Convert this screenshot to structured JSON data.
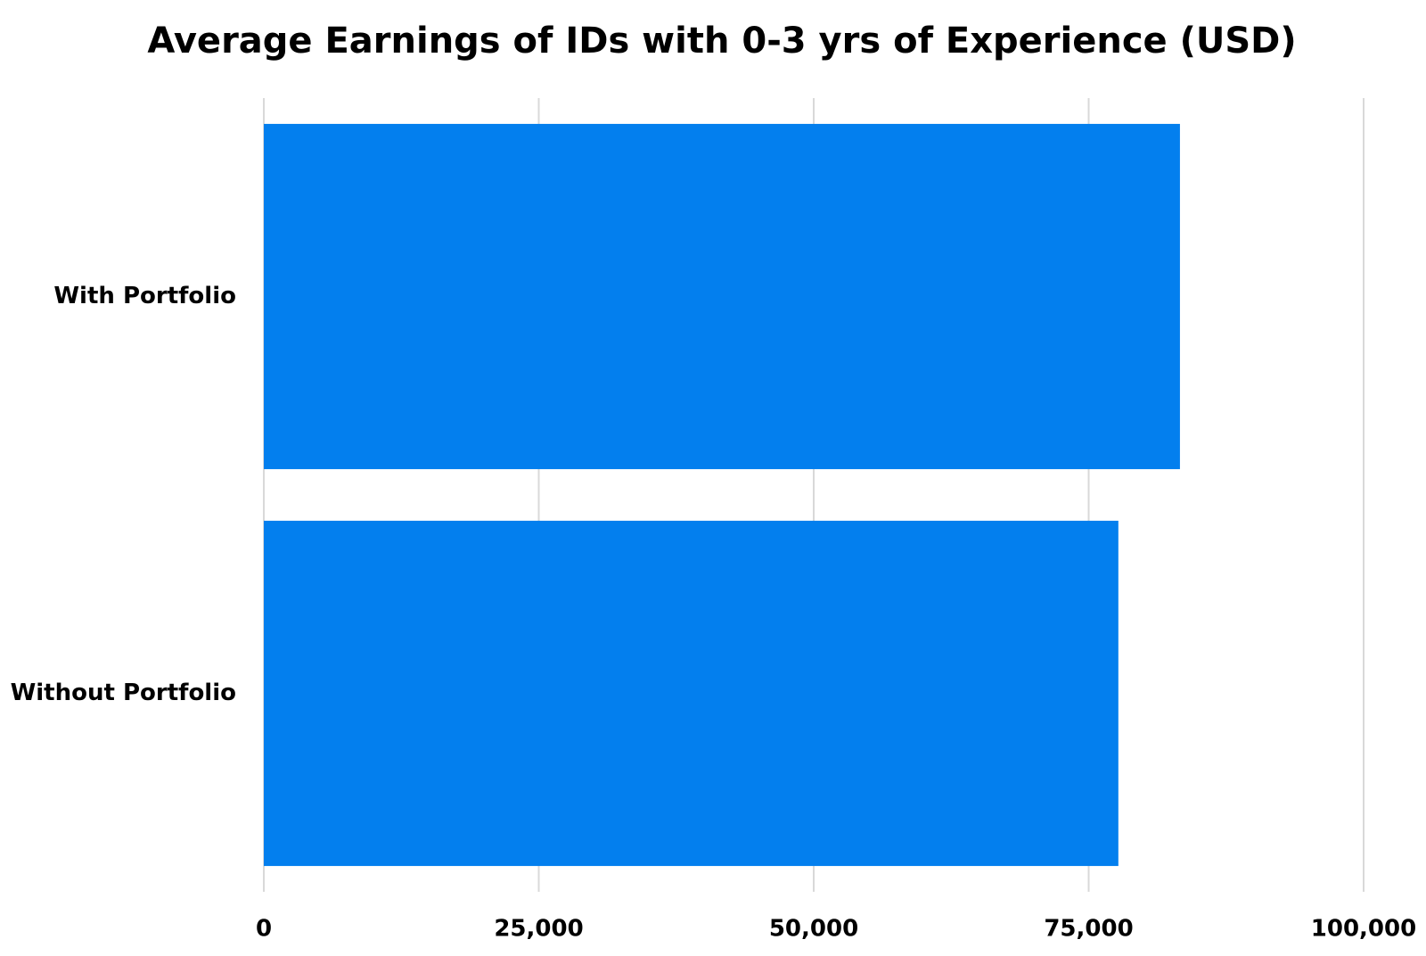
{
  "chart_data": {
    "type": "bar",
    "orientation": "horizontal",
    "title": "Average Earnings of IDs with 0-3 yrs of Experience (USD)",
    "categories": [
      "With Portfolio",
      "Without Portfolio"
    ],
    "values": [
      83300,
      77700
    ],
    "color": "#037fee",
    "xlim": [
      0,
      100000
    ],
    "xticks": [
      0,
      {
        "value": 25000,
        "label": "25,000"
      },
      {
        "value": 50000,
        "label": "50,000"
      },
      {
        "value": 75000,
        "label": "75,000"
      },
      {
        "value": 100000,
        "label": "100,000"
      }
    ],
    "grid": true
  }
}
